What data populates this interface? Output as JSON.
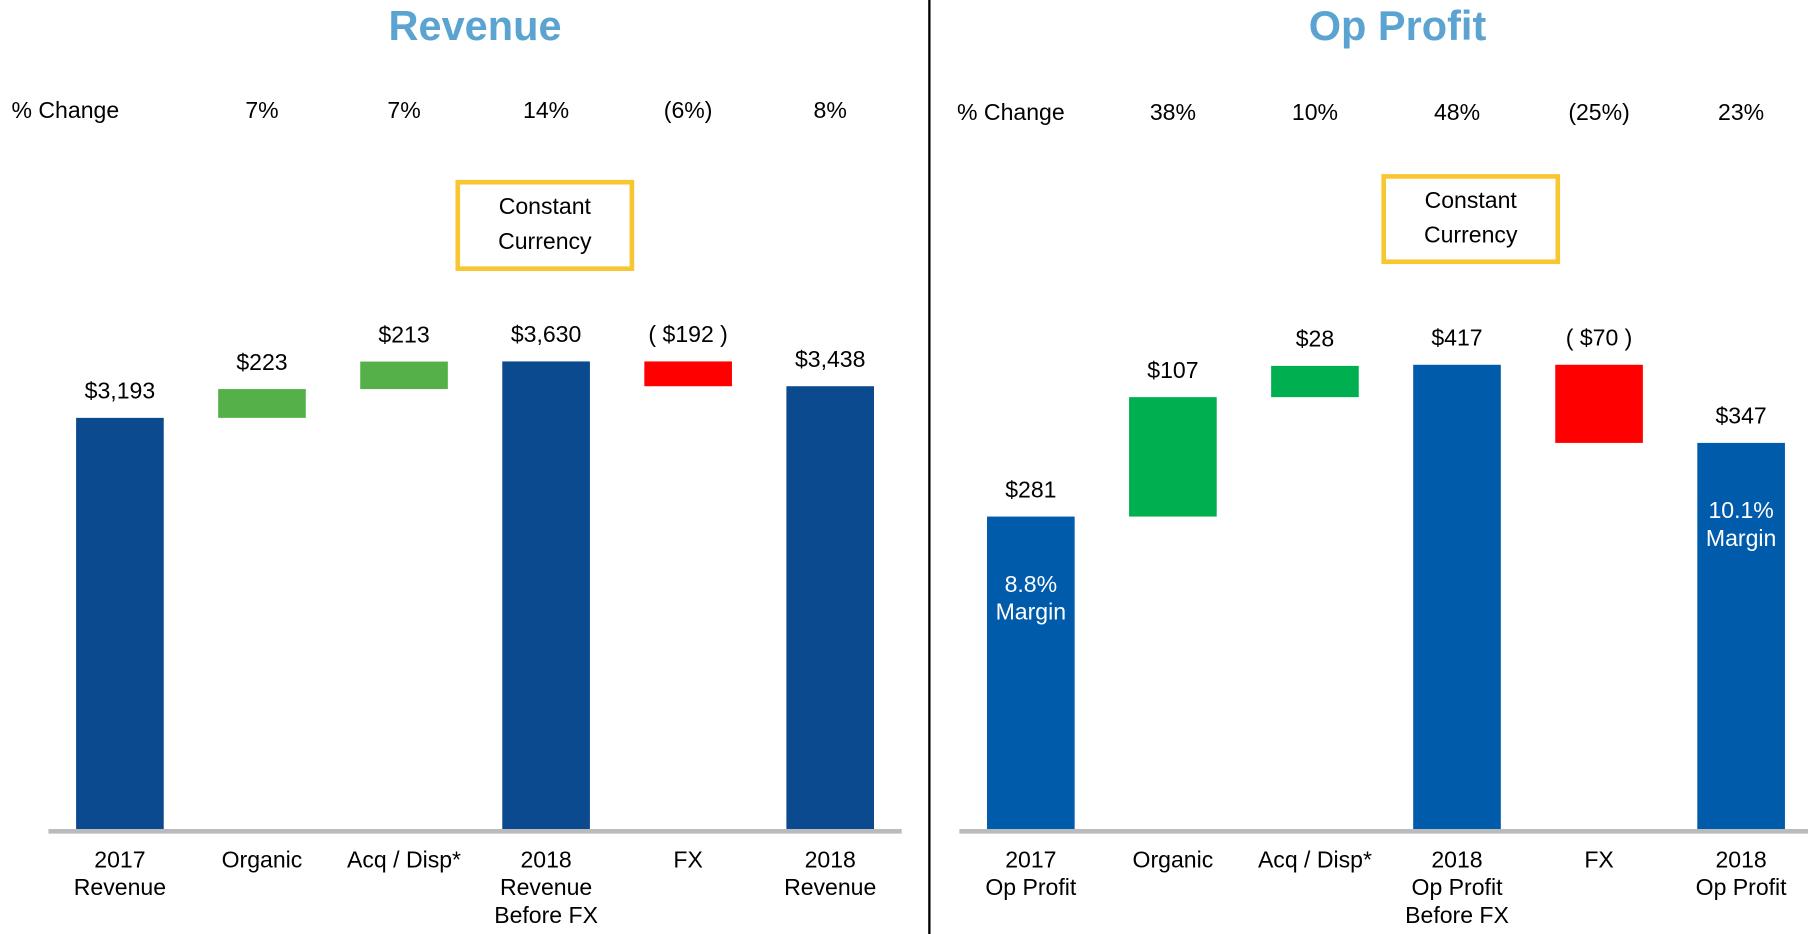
{
  "chart_data": [
    {
      "type": "waterfall",
      "title": "Revenue",
      "change_title": "% Change",
      "change_labels": [
        "7%",
        "7%",
        "14%",
        "(6%)",
        "8%"
      ],
      "note": [
        "Constant",
        "Currency"
      ],
      "categories": [
        [
          "2017",
          "Revenue"
        ],
        [
          "Organic"
        ],
        [
          "Acq / Disp*"
        ],
        [
          "2018",
          "Revenue",
          "Before FX"
        ],
        [
          "FX"
        ],
        [
          "2018",
          "Revenue"
        ]
      ],
      "values": [
        3193,
        223,
        213,
        3630,
        -192,
        3438
      ],
      "value_labels": [
        "$3,193",
        "$223",
        "$213",
        "$3,630",
        "( $192 )",
        "$3,438"
      ],
      "totals": [
        true,
        false,
        false,
        true,
        false,
        true
      ],
      "bar_annotations": [
        null,
        null,
        null,
        null,
        null,
        null
      ],
      "colors": {
        "total": "#0b4a8f",
        "increase": "#55b04a",
        "decrease": "#ff0000"
      },
      "ylim": [
        0,
        4000
      ]
    },
    {
      "type": "waterfall",
      "title": "Op Profit",
      "change_title": "% Change",
      "change_labels": [
        "38%",
        "10%",
        "48%",
        "(25%)",
        "23%"
      ],
      "note": [
        "Constant",
        "Currency"
      ],
      "categories": [
        [
          "2017",
          "Op Profit"
        ],
        [
          "Organic"
        ],
        [
          "Acq / Disp*"
        ],
        [
          "2018",
          "Op Profit",
          "Before FX"
        ],
        [
          "FX"
        ],
        [
          "2018",
          "Op Profit"
        ]
      ],
      "values": [
        281,
        107,
        28,
        417,
        -70,
        347
      ],
      "value_labels": [
        "$281",
        "$107",
        "$28",
        "$417",
        "( $70 )",
        "$347"
      ],
      "totals": [
        true,
        false,
        false,
        true,
        false,
        true
      ],
      "bar_annotations": [
        [
          "8.8%",
          "Margin"
        ],
        null,
        null,
        null,
        null,
        [
          "10.1%",
          "Margin"
        ]
      ],
      "colors": {
        "total": "#005bab",
        "increase": "#00b050",
        "decrease": "#ff0000"
      },
      "ylim": [
        0,
        500
      ]
    }
  ]
}
